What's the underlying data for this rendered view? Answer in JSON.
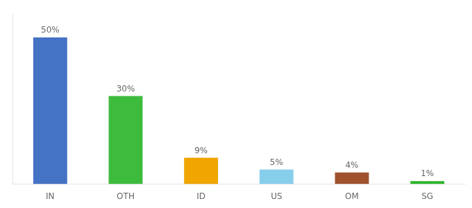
{
  "chart_data": {
    "type": "bar",
    "categories": [
      "IN",
      "OTH",
      "ID",
      "US",
      "OM",
      "SG"
    ],
    "values": [
      50,
      30,
      9,
      5,
      4,
      1
    ],
    "value_labels": [
      "50%",
      "30%",
      "9%",
      "5%",
      "4%",
      "1%"
    ],
    "colors": [
      "#4472c4",
      "#3dbb3d",
      "#f0a500",
      "#87ceeb",
      "#a0522d",
      "#2db52d"
    ],
    "ylim": [
      0,
      58
    ],
    "data_labels": true,
    "tick_labels": "x",
    "grid": false
  }
}
